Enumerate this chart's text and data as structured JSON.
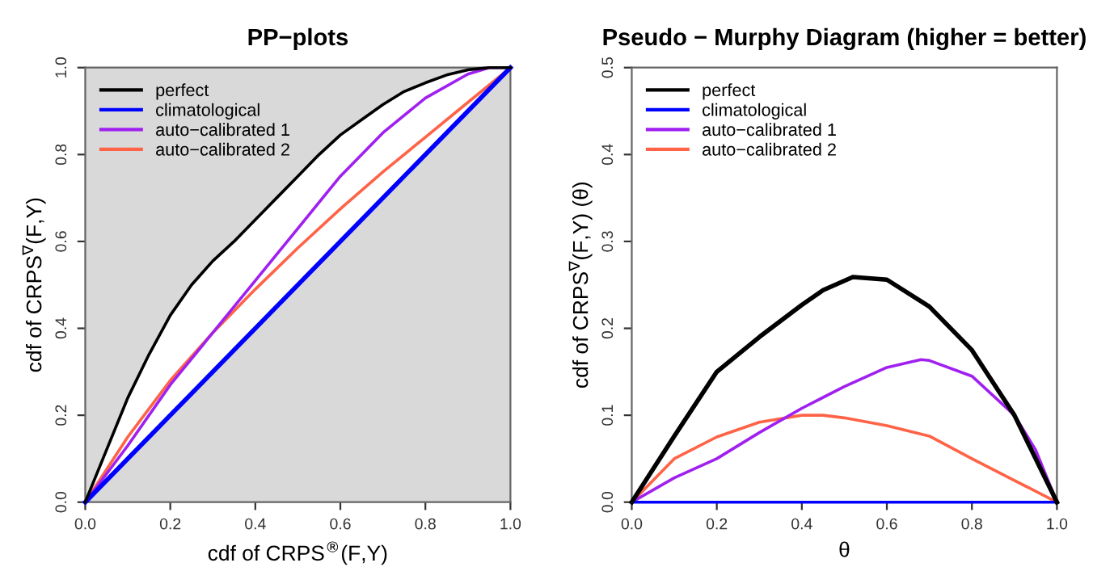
{
  "chart_data": [
    {
      "type": "line",
      "title": "PP−plots",
      "xlabel": "cdf of CRPS$^{®}$(F,Y)",
      "ylabel": "cdf of CRPS$^{∇}$(F,Y)",
      "xlim": [
        0,
        1
      ],
      "ylim": [
        0,
        1
      ],
      "xticks": [
        {
          "value": 0,
          "label": "0.0"
        },
        {
          "value": 0.2,
          "label": "0.2"
        },
        {
          "value": 0.4,
          "label": "0.4"
        },
        {
          "value": 0.6,
          "label": "0.6"
        },
        {
          "value": 0.8,
          "label": "0.8"
        },
        {
          "value": 1,
          "label": "1.0"
        }
      ],
      "yticks": [
        {
          "value": 0,
          "label": "0.0"
        },
        {
          "value": 0.2,
          "label": "0.2"
        },
        {
          "value": 0.4,
          "label": "0.4"
        },
        {
          "value": 0.6,
          "label": "0.6"
        },
        {
          "value": 0.8,
          "label": "0.8"
        },
        {
          "value": 1,
          "label": "1.0"
        }
      ],
      "legend": "top left",
      "grid": false,
      "series": [
        {
          "name": "perfect",
          "color": "#000000",
          "x": [
            0,
            0.05,
            0.1,
            0.15,
            0.2,
            0.25,
            0.3,
            0.35,
            0.4,
            0.45,
            0.5,
            0.55,
            0.6,
            0.65,
            0.7,
            0.75,
            0.8,
            0.85,
            0.9,
            0.95,
            1
          ],
          "values": [
            0,
            0.12,
            0.24,
            0.34,
            0.43,
            0.5,
            0.555,
            0.6,
            0.65,
            0.7,
            0.75,
            0.8,
            0.845,
            0.88,
            0.915,
            0.945,
            0.965,
            0.983,
            0.995,
            1,
            1
          ]
        },
        {
          "name": "climatological",
          "color": "#0000ff",
          "x": [
            0,
            1
          ],
          "values": [
            0,
            1
          ]
        },
        {
          "name": "auto−calibrated 1",
          "color": "#a020f0",
          "x": [
            0,
            0.1,
            0.2,
            0.3,
            0.4,
            0.5,
            0.6,
            0.7,
            0.8,
            0.9,
            0.95,
            1
          ],
          "values": [
            0,
            0.13,
            0.27,
            0.39,
            0.51,
            0.63,
            0.75,
            0.85,
            0.93,
            0.985,
            1,
            1
          ]
        },
        {
          "name": "auto−calibrated 2",
          "color": "#ff6347",
          "x": [
            0,
            0.1,
            0.2,
            0.3,
            0.4,
            0.5,
            0.6,
            0.7,
            0.8,
            0.9,
            1
          ],
          "values": [
            0,
            0.15,
            0.28,
            0.39,
            0.49,
            0.585,
            0.675,
            0.76,
            0.84,
            0.92,
            1
          ]
        }
      ]
    },
    {
      "type": "line",
      "title": "Pseudo − Murphy Diagram (higher = better)",
      "xlabel": "θ",
      "ylabel": "cdf of CRPS$^{∇}$(F,Y) (θ)",
      "xlim": [
        0,
        1
      ],
      "ylim": [
        0,
        0.5
      ],
      "xticks": [
        {
          "value": 0,
          "label": "0.0"
        },
        {
          "value": 0.2,
          "label": "0.2"
        },
        {
          "value": 0.4,
          "label": "0.4"
        },
        {
          "value": 0.6,
          "label": "0.6"
        },
        {
          "value": 0.8,
          "label": "0.8"
        },
        {
          "value": 1,
          "label": "1.0"
        }
      ],
      "yticks": [
        {
          "value": 0,
          "label": "0.0"
        },
        {
          "value": 0.1,
          "label": "0.1"
        },
        {
          "value": 0.2,
          "label": "0.2"
        },
        {
          "value": 0.3,
          "label": "0.3"
        },
        {
          "value": 0.4,
          "label": "0.4"
        },
        {
          "value": 0.5,
          "label": "0.5"
        }
      ],
      "legend": "top left",
      "grid": false,
      "series": [
        {
          "name": "perfect",
          "color": "#000000",
          "x": [
            0,
            0.1,
            0.2,
            0.3,
            0.4,
            0.45,
            0.52,
            0.6,
            0.7,
            0.8,
            0.9,
            1
          ],
          "values": [
            0,
            0.076,
            0.15,
            0.19,
            0.227,
            0.244,
            0.259,
            0.256,
            0.225,
            0.175,
            0.1,
            0
          ]
        },
        {
          "name": "climatological",
          "color": "#0000ff",
          "x": [
            0,
            1
          ],
          "values": [
            0,
            0
          ]
        },
        {
          "name": "auto−calibrated 1",
          "color": "#a020f0",
          "x": [
            0,
            0.1,
            0.2,
            0.3,
            0.4,
            0.5,
            0.6,
            0.68,
            0.7,
            0.8,
            0.9,
            0.95,
            1
          ],
          "values": [
            0,
            0.028,
            0.05,
            0.08,
            0.108,
            0.133,
            0.155,
            0.164,
            0.163,
            0.145,
            0.1,
            0.06,
            0
          ]
        },
        {
          "name": "auto−calibrated 2",
          "color": "#ff6347",
          "x": [
            0,
            0.1,
            0.2,
            0.3,
            0.4,
            0.45,
            0.5,
            0.6,
            0.7,
            0.8,
            0.9,
            1
          ],
          "values": [
            0,
            0.05,
            0.075,
            0.092,
            0.1,
            0.1,
            0.097,
            0.088,
            0.076,
            0.05,
            0.025,
            0
          ]
        }
      ]
    }
  ]
}
